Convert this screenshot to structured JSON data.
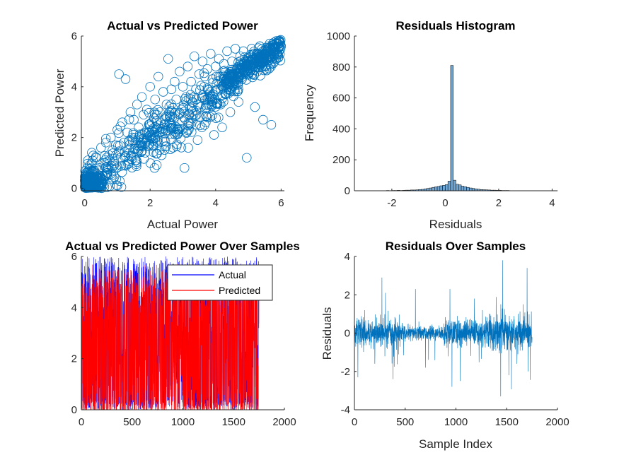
{
  "colors": {
    "matlab_blue": "#0072BD",
    "actual_blue": "#0000FF",
    "predicted_red": "#FF0000",
    "hist_face": "#6EA6D6",
    "axis": "#262626"
  },
  "chart_data": [
    {
      "id": "scatter",
      "type": "scatter",
      "title": "Actual vs Predicted Power",
      "xlabel": "Actual Power",
      "ylabel": "Predicted Power",
      "xlim": [
        -0.1,
        6.1
      ],
      "ylim": [
        -0.1,
        6
      ],
      "xticks": [
        0,
        2,
        4,
        6
      ],
      "yticks": [
        0,
        2,
        4,
        6
      ],
      "marker": "open-circle",
      "grid": false,
      "point_count": 1750,
      "points": [
        [
          0.02,
          0.05
        ],
        [
          0.05,
          0.6
        ],
        [
          0.08,
          0.2
        ],
        [
          0.1,
          1.1
        ],
        [
          0.12,
          0.3
        ],
        [
          0.15,
          0.9
        ],
        [
          0.2,
          0.4
        ],
        [
          0.22,
          1.4
        ],
        [
          0.25,
          0.1
        ],
        [
          0.3,
          0.7
        ],
        [
          0.35,
          1.2
        ],
        [
          0.4,
          0.3
        ],
        [
          0.45,
          0.8
        ],
        [
          0.5,
          1.6
        ],
        [
          0.55,
          0.5
        ],
        [
          0.6,
          1.0
        ],
        [
          0.65,
          1.8
        ],
        [
          0.7,
          0.6
        ],
        [
          0.75,
          1.3
        ],
        [
          0.8,
          2.0
        ],
        [
          0.85,
          1.5
        ],
        [
          0.9,
          0.9
        ],
        [
          0.95,
          1.7
        ],
        [
          1.0,
          2.3
        ],
        [
          1.0,
          0.1
        ],
        [
          1.05,
          4.5
        ],
        [
          1.1,
          1.2
        ],
        [
          1.15,
          2.6
        ],
        [
          1.2,
          1.8
        ],
        [
          1.25,
          4.3
        ],
        [
          1.3,
          2.2
        ],
        [
          1.35,
          1.5
        ],
        [
          1.4,
          3.0
        ],
        [
          1.45,
          2.0
        ],
        [
          1.5,
          2.7
        ],
        [
          1.55,
          1.1
        ],
        [
          1.6,
          3.3
        ],
        [
          1.65,
          2.4
        ],
        [
          1.7,
          1.8
        ],
        [
          1.75,
          3.6
        ],
        [
          1.8,
          2.9
        ],
        [
          1.85,
          1.4
        ],
        [
          1.9,
          3.1
        ],
        [
          1.95,
          2.2
        ],
        [
          2.0,
          4.0
        ],
        [
          2.05,
          2.6
        ],
        [
          2.1,
          1.7
        ],
        [
          2.15,
          3.5
        ],
        [
          2.2,
          2.9
        ],
        [
          2.25,
          4.4
        ],
        [
          2.3,
          3.0
        ],
        [
          2.35,
          1.3
        ],
        [
          2.4,
          3.8
        ],
        [
          2.45,
          2.5
        ],
        [
          2.5,
          3.3
        ],
        [
          2.55,
          5.1
        ],
        [
          2.6,
          2.8
        ],
        [
          2.65,
          3.9
        ],
        [
          2.7,
          1.6
        ],
        [
          2.75,
          4.2
        ],
        [
          2.8,
          3.5
        ],
        [
          2.85,
          2.3
        ],
        [
          2.9,
          4.6
        ],
        [
          2.95,
          3.1
        ],
        [
          3.0,
          4.0
        ],
        [
          3.05,
          0.8
        ],
        [
          3.1,
          3.6
        ],
        [
          3.15,
          4.8
        ],
        [
          3.2,
          2.9
        ],
        [
          3.25,
          4.2
        ],
        [
          3.3,
          3.4
        ],
        [
          3.35,
          5.2
        ],
        [
          3.4,
          3.9
        ],
        [
          3.45,
          1.9
        ],
        [
          3.5,
          4.5
        ],
        [
          3.55,
          3.2
        ],
        [
          3.6,
          5.0
        ],
        [
          3.65,
          4.0
        ],
        [
          3.7,
          2.6
        ],
        [
          3.75,
          4.7
        ],
        [
          3.8,
          3.6
        ],
        [
          3.85,
          5.3
        ],
        [
          3.9,
          4.3
        ],
        [
          3.95,
          2.1
        ],
        [
          4.0,
          4.8
        ],
        [
          4.05,
          3.9
        ],
        [
          4.1,
          5.1
        ],
        [
          4.15,
          4.4
        ],
        [
          4.2,
          2.4
        ],
        [
          4.25,
          4.9
        ],
        [
          4.3,
          3.7
        ],
        [
          4.35,
          5.4
        ],
        [
          4.4,
          4.5
        ],
        [
          4.45,
          3.0
        ],
        [
          4.5,
          5.0
        ],
        [
          4.55,
          4.2
        ],
        [
          4.6,
          5.5
        ],
        [
          4.65,
          4.7
        ],
        [
          4.7,
          3.4
        ],
        [
          4.75,
          5.2
        ],
        [
          4.8,
          4.3
        ],
        [
          4.85,
          5.4
        ],
        [
          4.9,
          4.9
        ],
        [
          4.95,
          1.2
        ],
        [
          5.0,
          5.1
        ],
        [
          5.05,
          4.6
        ],
        [
          5.1,
          5.5
        ],
        [
          5.15,
          4.8
        ],
        [
          5.2,
          3.2
        ],
        [
          5.25,
          5.3
        ],
        [
          5.3,
          4.9
        ],
        [
          5.35,
          5.6
        ],
        [
          5.4,
          5.0
        ],
        [
          5.45,
          2.7
        ],
        [
          5.5,
          5.3
        ],
        [
          5.55,
          4.7
        ],
        [
          5.6,
          5.6
        ],
        [
          5.65,
          5.2
        ],
        [
          5.7,
          2.5
        ],
        [
          5.75,
          5.4
        ],
        [
          5.8,
          5.0
        ],
        [
          5.85,
          5.7
        ],
        [
          5.9,
          5.3
        ],
        [
          5.95,
          5.8
        ],
        [
          6.0,
          5.6
        ]
      ]
    },
    {
      "id": "histogram",
      "type": "bar",
      "title": "Residuals Histogram",
      "xlabel": "Residuals",
      "ylabel": "Frequency",
      "xlim": [
        -3.4,
        4.2
      ],
      "ylim": [
        0,
        1000
      ],
      "xticks": [
        -2,
        0,
        2,
        4
      ],
      "yticks": [
        0,
        200,
        400,
        600,
        800,
        1000
      ],
      "bin_width": 0.1,
      "bin_start": -3.4,
      "counts": [
        1,
        0,
        1,
        1,
        0,
        1,
        1,
        1,
        0,
        1,
        1,
        1,
        2,
        1,
        2,
        2,
        3,
        2,
        3,
        4,
        4,
        5,
        5,
        6,
        8,
        9,
        12,
        15,
        18,
        22,
        25,
        28,
        32,
        35,
        40,
        62,
        810,
        68,
        42,
        38,
        30,
        26,
        22,
        18,
        15,
        12,
        10,
        8,
        7,
        6,
        5,
        4,
        4,
        3,
        3,
        2,
        2,
        2,
        1,
        1,
        1,
        1,
        1,
        0,
        1,
        1,
        0,
        1,
        0,
        1,
        1,
        0,
        1,
        0,
        1,
        1
      ]
    },
    {
      "id": "samples",
      "type": "line",
      "title": "Actual vs Predicted Power Over Samples",
      "xlabel": "",
      "ylabel": "",
      "xlim": [
        0,
        2000
      ],
      "ylim": [
        0,
        6
      ],
      "xticks": [
        0,
        500,
        1000,
        1500,
        2000
      ],
      "yticks": [
        0,
        2,
        4,
        6
      ],
      "legend": "top-right",
      "sample_count": 1750,
      "series": [
        {
          "name": "Actual",
          "color": "#0000FF"
        },
        {
          "name": "Predicted",
          "color": "#FF0000"
        }
      ]
    },
    {
      "id": "residuals",
      "type": "line",
      "title": "Residuals Over Samples",
      "xlabel": "Sample Index",
      "ylabel": "Residuals",
      "xlim": [
        0,
        2000
      ],
      "ylim": [
        -4,
        4
      ],
      "xticks": [
        0,
        500,
        1000,
        1500,
        2000
      ],
      "yticks": [
        -4,
        -2,
        0,
        2,
        4
      ],
      "sample_count": 1750,
      "spikes": [
        [
          100,
          1.2
        ],
        [
          200,
          -1.6
        ],
        [
          270,
          2.9
        ],
        [
          380,
          -2.4
        ],
        [
          600,
          2.3
        ],
        [
          700,
          -1.8
        ],
        [
          940,
          2.3
        ],
        [
          960,
          -2.8
        ],
        [
          1040,
          -2.5
        ],
        [
          1180,
          1.8
        ],
        [
          1260,
          1.2
        ],
        [
          1440,
          -3.3
        ],
        [
          1460,
          3.8
        ],
        [
          1520,
          -2.2
        ],
        [
          1600,
          -1.6
        ],
        [
          1700,
          3.4
        ],
        [
          1710,
          -2.0
        ]
      ]
    }
  ]
}
